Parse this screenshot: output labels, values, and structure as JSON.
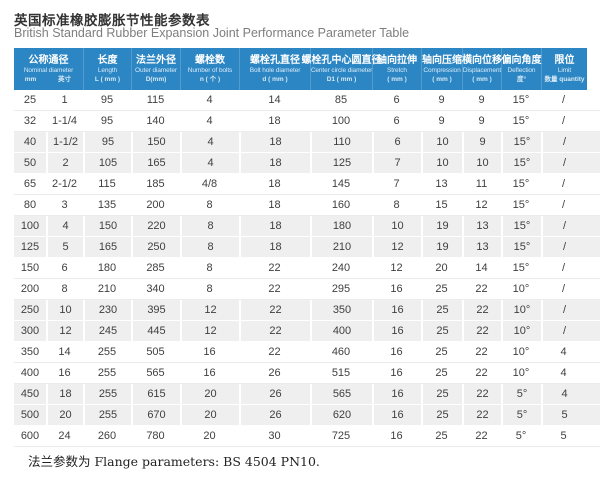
{
  "title": {
    "zh": "英国标准橡胶膨胀节性能参数表",
    "en": "British Standard Rubber Expansion Joint Performance Parameter Table"
  },
  "table": {
    "columns": [
      {
        "zh": "公称通径",
        "en": "Nominal diameter",
        "sub_left": "mm",
        "sub_right": "英寸"
      },
      {
        "zh": "长度",
        "en": "Length",
        "unit": "L ( mm )"
      },
      {
        "zh": "法兰外径",
        "en": "Outer diameter",
        "unit": "D(mm)"
      },
      {
        "zh": "螺栓数",
        "en": "Number of bolts",
        "unit": "n ( 个 )"
      },
      {
        "zh": "螺栓孔直径",
        "en": "Bolt hole diameter",
        "unit": "d ( mm )"
      },
      {
        "zh": "螺栓孔中心圆直径",
        "en": "Center circle diameter",
        "unit": "D1 ( mm )"
      },
      {
        "zh": "轴向拉伸",
        "en": "Stretch",
        "unit": "( mm )"
      },
      {
        "zh": "轴向压缩",
        "en": "Compression",
        "unit": "( mm )"
      },
      {
        "zh": "横向位移",
        "en": "Displacement",
        "unit": "( mm )"
      },
      {
        "zh": "偏向角度",
        "en": "Deflection",
        "unit": "度°"
      },
      {
        "zh": "限位",
        "en": "Limit",
        "unit": "数量 quantity"
      }
    ],
    "rows": [
      [
        "25",
        "1",
        "95",
        "115",
        "4",
        "14",
        "85",
        "6",
        "9",
        "9",
        "15°",
        "/"
      ],
      [
        "32",
        "1-1/4",
        "95",
        "140",
        "4",
        "18",
        "100",
        "6",
        "9",
        "9",
        "15°",
        "/"
      ],
      [
        "40",
        "1-1/2",
        "95",
        "150",
        "4",
        "18",
        "110",
        "6",
        "10",
        "9",
        "15°",
        "/"
      ],
      [
        "50",
        "2",
        "105",
        "165",
        "4",
        "18",
        "125",
        "7",
        "10",
        "10",
        "15°",
        "/"
      ],
      [
        "65",
        "2-1/2",
        "115",
        "185",
        "4/8",
        "18",
        "145",
        "7",
        "13",
        "11",
        "15°",
        "/"
      ],
      [
        "80",
        "3",
        "135",
        "200",
        "8",
        "18",
        "160",
        "8",
        "15",
        "12",
        "15°",
        "/"
      ],
      [
        "100",
        "4",
        "150",
        "220",
        "8",
        "18",
        "180",
        "10",
        "19",
        "13",
        "15°",
        "/"
      ],
      [
        "125",
        "5",
        "165",
        "250",
        "8",
        "18",
        "210",
        "12",
        "19",
        "13",
        "15°",
        "/"
      ],
      [
        "150",
        "6",
        "180",
        "285",
        "8",
        "22",
        "240",
        "12",
        "20",
        "14",
        "15°",
        "/"
      ],
      [
        "200",
        "8",
        "210",
        "340",
        "8",
        "22",
        "295",
        "16",
        "25",
        "22",
        "10°",
        "/"
      ],
      [
        "250",
        "10",
        "230",
        "395",
        "12",
        "22",
        "350",
        "16",
        "25",
        "22",
        "10°",
        "/"
      ],
      [
        "300",
        "12",
        "245",
        "445",
        "12",
        "22",
        "400",
        "16",
        "25",
        "22",
        "10°",
        "/"
      ],
      [
        "350",
        "14",
        "255",
        "505",
        "16",
        "22",
        "460",
        "16",
        "25",
        "22",
        "10°",
        "4"
      ],
      [
        "400",
        "16",
        "255",
        "565",
        "16",
        "26",
        "515",
        "16",
        "25",
        "22",
        "10°",
        "4"
      ],
      [
        "450",
        "18",
        "255",
        "615",
        "20",
        "26",
        "565",
        "16",
        "25",
        "22",
        "5°",
        "4"
      ],
      [
        "500",
        "20",
        "255",
        "670",
        "20",
        "26",
        "620",
        "16",
        "25",
        "22",
        "5°",
        "5"
      ],
      [
        "600",
        "24",
        "260",
        "780",
        "20",
        "30",
        "725",
        "16",
        "25",
        "22",
        "5°",
        "5"
      ]
    ]
  },
  "footer": "法兰参数为 Flange parameters: BS 4504 PN10.",
  "colors": {
    "header_bg": "#2c86c3",
    "header_text": "#ffffff",
    "header_subtext": "#d6e9f7",
    "stripe_bg": "#efefef",
    "cell_text": "#3f3f3f"
  }
}
